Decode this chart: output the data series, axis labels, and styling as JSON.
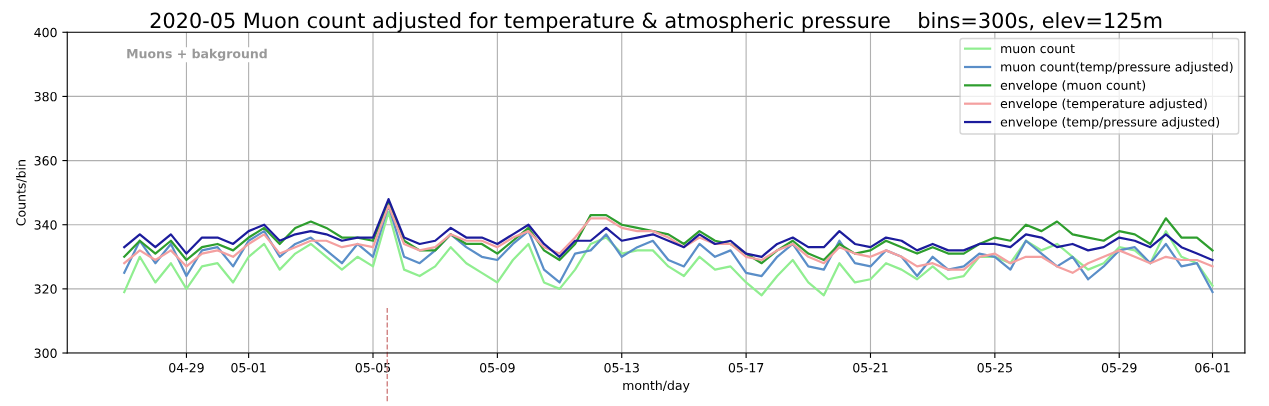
{
  "chart_data": {
    "type": "line",
    "title": "2020-05 Muon count adjusted for temperature & atmospheric pressure    bins=300s, elev=125m",
    "xlabel": "month/day",
    "ylabel": "Counts/bin",
    "annotations": [
      "Muons + bakground"
    ],
    "x": [
      "2020-04-27T00:00",
      "2020-04-27T12:00",
      "2020-04-28T00:00",
      "2020-04-28T12:00",
      "2020-04-29T00:00",
      "2020-04-29T12:00",
      "2020-04-30T00:00",
      "2020-04-30T12:00",
      "2020-05-01T00:00",
      "2020-05-01T12:00",
      "2020-05-02T00:00",
      "2020-05-02T12:00",
      "2020-05-03T00:00",
      "2020-05-03T12:00",
      "2020-05-04T00:00",
      "2020-05-04T12:00",
      "2020-05-05T00:00",
      "2020-05-05T12:00",
      "2020-05-06T00:00",
      "2020-05-06T12:00",
      "2020-05-07T00:00",
      "2020-05-07T12:00",
      "2020-05-08T00:00",
      "2020-05-08T12:00",
      "2020-05-09T00:00",
      "2020-05-09T12:00",
      "2020-05-10T00:00",
      "2020-05-10T12:00",
      "2020-05-11T00:00",
      "2020-05-11T12:00",
      "2020-05-12T00:00",
      "2020-05-12T12:00",
      "2020-05-13T00:00",
      "2020-05-13T12:00",
      "2020-05-14T00:00",
      "2020-05-14T12:00",
      "2020-05-15T00:00",
      "2020-05-15T12:00",
      "2020-05-16T00:00",
      "2020-05-16T12:00",
      "2020-05-17T00:00",
      "2020-05-17T12:00",
      "2020-05-18T00:00",
      "2020-05-18T12:00",
      "2020-05-19T00:00",
      "2020-05-19T12:00",
      "2020-05-20T00:00",
      "2020-05-20T12:00",
      "2020-05-21T00:00",
      "2020-05-21T12:00",
      "2020-05-22T00:00",
      "2020-05-22T12:00",
      "2020-05-23T00:00",
      "2020-05-23T12:00",
      "2020-05-24T00:00",
      "2020-05-24T12:00",
      "2020-05-25T00:00",
      "2020-05-25T12:00",
      "2020-05-26T00:00",
      "2020-05-26T12:00",
      "2020-05-27T00:00",
      "2020-05-27T12:00",
      "2020-05-28T00:00",
      "2020-05-28T12:00",
      "2020-05-29T00:00",
      "2020-05-29T12:00",
      "2020-05-30T00:00",
      "2020-05-30T12:00",
      "2020-05-31T00:00",
      "2020-05-31T12:00",
      "2020-06-01T00:00"
    ],
    "series": [
      {
        "name": "muon count",
        "color": "#90ee90",
        "values": [
          319,
          330,
          322,
          328,
          320,
          327,
          328,
          322,
          330,
          334,
          326,
          331,
          334,
          330,
          326,
          330,
          327,
          344,
          326,
          324,
          327,
          333,
          328,
          325,
          322,
          329,
          334,
          322,
          320,
          326,
          334,
          336,
          331,
          332,
          332,
          327,
          324,
          330,
          326,
          327,
          322,
          318,
          324,
          329,
          322,
          318,
          328,
          322,
          323,
          328,
          326,
          323,
          327,
          323,
          324,
          330,
          330,
          328,
          335,
          332,
          334,
          330,
          326,
          328,
          333,
          332,
          328,
          338,
          330,
          328,
          321
        ]
      },
      {
        "name": "muon count(temp/pressure adjusted)",
        "color": "#5a8ec8",
        "values": [
          325,
          335,
          328,
          334,
          324,
          332,
          333,
          327,
          335,
          338,
          330,
          334,
          336,
          332,
          328,
          334,
          330,
          346,
          330,
          328,
          332,
          337,
          333,
          330,
          329,
          334,
          338,
          326,
          322,
          331,
          332,
          337,
          330,
          333,
          335,
          329,
          327,
          334,
          330,
          332,
          325,
          324,
          330,
          334,
          327,
          326,
          335,
          328,
          327,
          332,
          330,
          324,
          330,
          326,
          327,
          331,
          330,
          326,
          335,
          331,
          327,
          330,
          323,
          327,
          332,
          333,
          328,
          334,
          327,
          328,
          319
        ]
      },
      {
        "name": "envelope (muon count)",
        "color": "#2e9e2e",
        "values": [
          330,
          335,
          331,
          335,
          329,
          333,
          334,
          332,
          336,
          339,
          334,
          339,
          341,
          339,
          336,
          336,
          335,
          347,
          335,
          332,
          332,
          337,
          334,
          334,
          331,
          335,
          339,
          332,
          329,
          334,
          343,
          343,
          340,
          339,
          338,
          337,
          334,
          338,
          335,
          334,
          331,
          328,
          332,
          335,
          331,
          329,
          334,
          331,
          332,
          335,
          333,
          331,
          333,
          331,
          331,
          334,
          336,
          335,
          340,
          338,
          341,
          337,
          336,
          335,
          338,
          337,
          334,
          342,
          336,
          336,
          332
        ]
      },
      {
        "name": "envelope (temperature adjusted)",
        "color": "#f4a0a0",
        "values": [
          328,
          332,
          329,
          332,
          327,
          331,
          332,
          330,
          334,
          337,
          331,
          333,
          335,
          335,
          333,
          334,
          333,
          346,
          334,
          332,
          333,
          337,
          335,
          335,
          333,
          336,
          338,
          333,
          331,
          336,
          342,
          342,
          339,
          338,
          338,
          336,
          333,
          336,
          334,
          334,
          330,
          329,
          332,
          334,
          330,
          328,
          333,
          331,
          330,
          332,
          330,
          327,
          328,
          326,
          326,
          330,
          331,
          328,
          330,
          330,
          327,
          325,
          328,
          330,
          332,
          330,
          328,
          330,
          329,
          329,
          327
        ]
      },
      {
        "name": "envelope (temp/pressure adjusted)",
        "color": "#1c1c9c",
        "values": [
          333,
          337,
          333,
          337,
          331,
          336,
          336,
          334,
          338,
          340,
          335,
          337,
          338,
          337,
          335,
          336,
          336,
          348,
          336,
          334,
          335,
          339,
          336,
          336,
          334,
          337,
          340,
          334,
          330,
          335,
          335,
          339,
          335,
          336,
          337,
          335,
          333,
          337,
          334,
          335,
          331,
          330,
          334,
          336,
          333,
          333,
          338,
          334,
          333,
          336,
          335,
          332,
          334,
          332,
          332,
          334,
          334,
          333,
          337,
          336,
          333,
          334,
          332,
          333,
          336,
          335,
          333,
          337,
          333,
          331,
          329
        ]
      }
    ],
    "xlim": [
      "2020-04-25T04:00",
      "2020-06-02T01:00"
    ],
    "xticks": [
      {
        "value": "2020-04-29",
        "label": "04-29"
      },
      {
        "value": "2020-05-01",
        "label": "05-01"
      },
      {
        "value": "2020-05-05",
        "label": "05-05"
      },
      {
        "value": "2020-05-09",
        "label": "05-09"
      },
      {
        "value": "2020-05-13",
        "label": "05-13"
      },
      {
        "value": "2020-05-17",
        "label": "05-17"
      },
      {
        "value": "2020-05-21",
        "label": "05-21"
      },
      {
        "value": "2020-05-25",
        "label": "05-25"
      },
      {
        "value": "2020-05-29",
        "label": "05-29"
      },
      {
        "value": "2020-06-01",
        "label": "06-01"
      }
    ],
    "ylim": [
      300,
      400
    ],
    "yticks": [
      300,
      320,
      340,
      360,
      380,
      400
    ],
    "ref_lines": [
      {
        "axis": "x",
        "value": "2020-05-05T11:00",
        "color": "#d08080",
        "line_style": "dashed"
      }
    ],
    "grid": true,
    "legend": "top right",
    "marker": "none",
    "line_style": "solid"
  }
}
